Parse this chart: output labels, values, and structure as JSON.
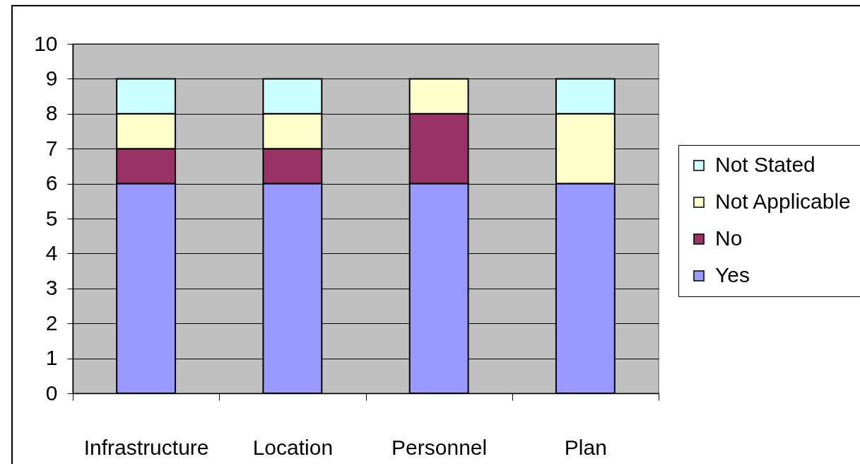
{
  "chart_data": {
    "type": "bar",
    "stacked": true,
    "categories": [
      "Infrastructure",
      "Location",
      "Personnel",
      "Plan"
    ],
    "series": [
      {
        "name": "Yes",
        "color": "#9999ff",
        "values": [
          6,
          6,
          6,
          6
        ]
      },
      {
        "name": "No",
        "color": "#993366",
        "values": [
          1,
          1,
          2,
          0
        ]
      },
      {
        "name": "Not Applicable",
        "color": "#ffffcc",
        "values": [
          1,
          1,
          1,
          2
        ]
      },
      {
        "name": "Not Stated",
        "color": "#ccffff",
        "values": [
          1,
          1,
          0,
          1
        ]
      }
    ],
    "ylim": [
      0,
      10
    ],
    "yticks": [
      0,
      1,
      2,
      3,
      4,
      5,
      6,
      7,
      8,
      9,
      10
    ],
    "grid": "y",
    "legend": "right"
  }
}
